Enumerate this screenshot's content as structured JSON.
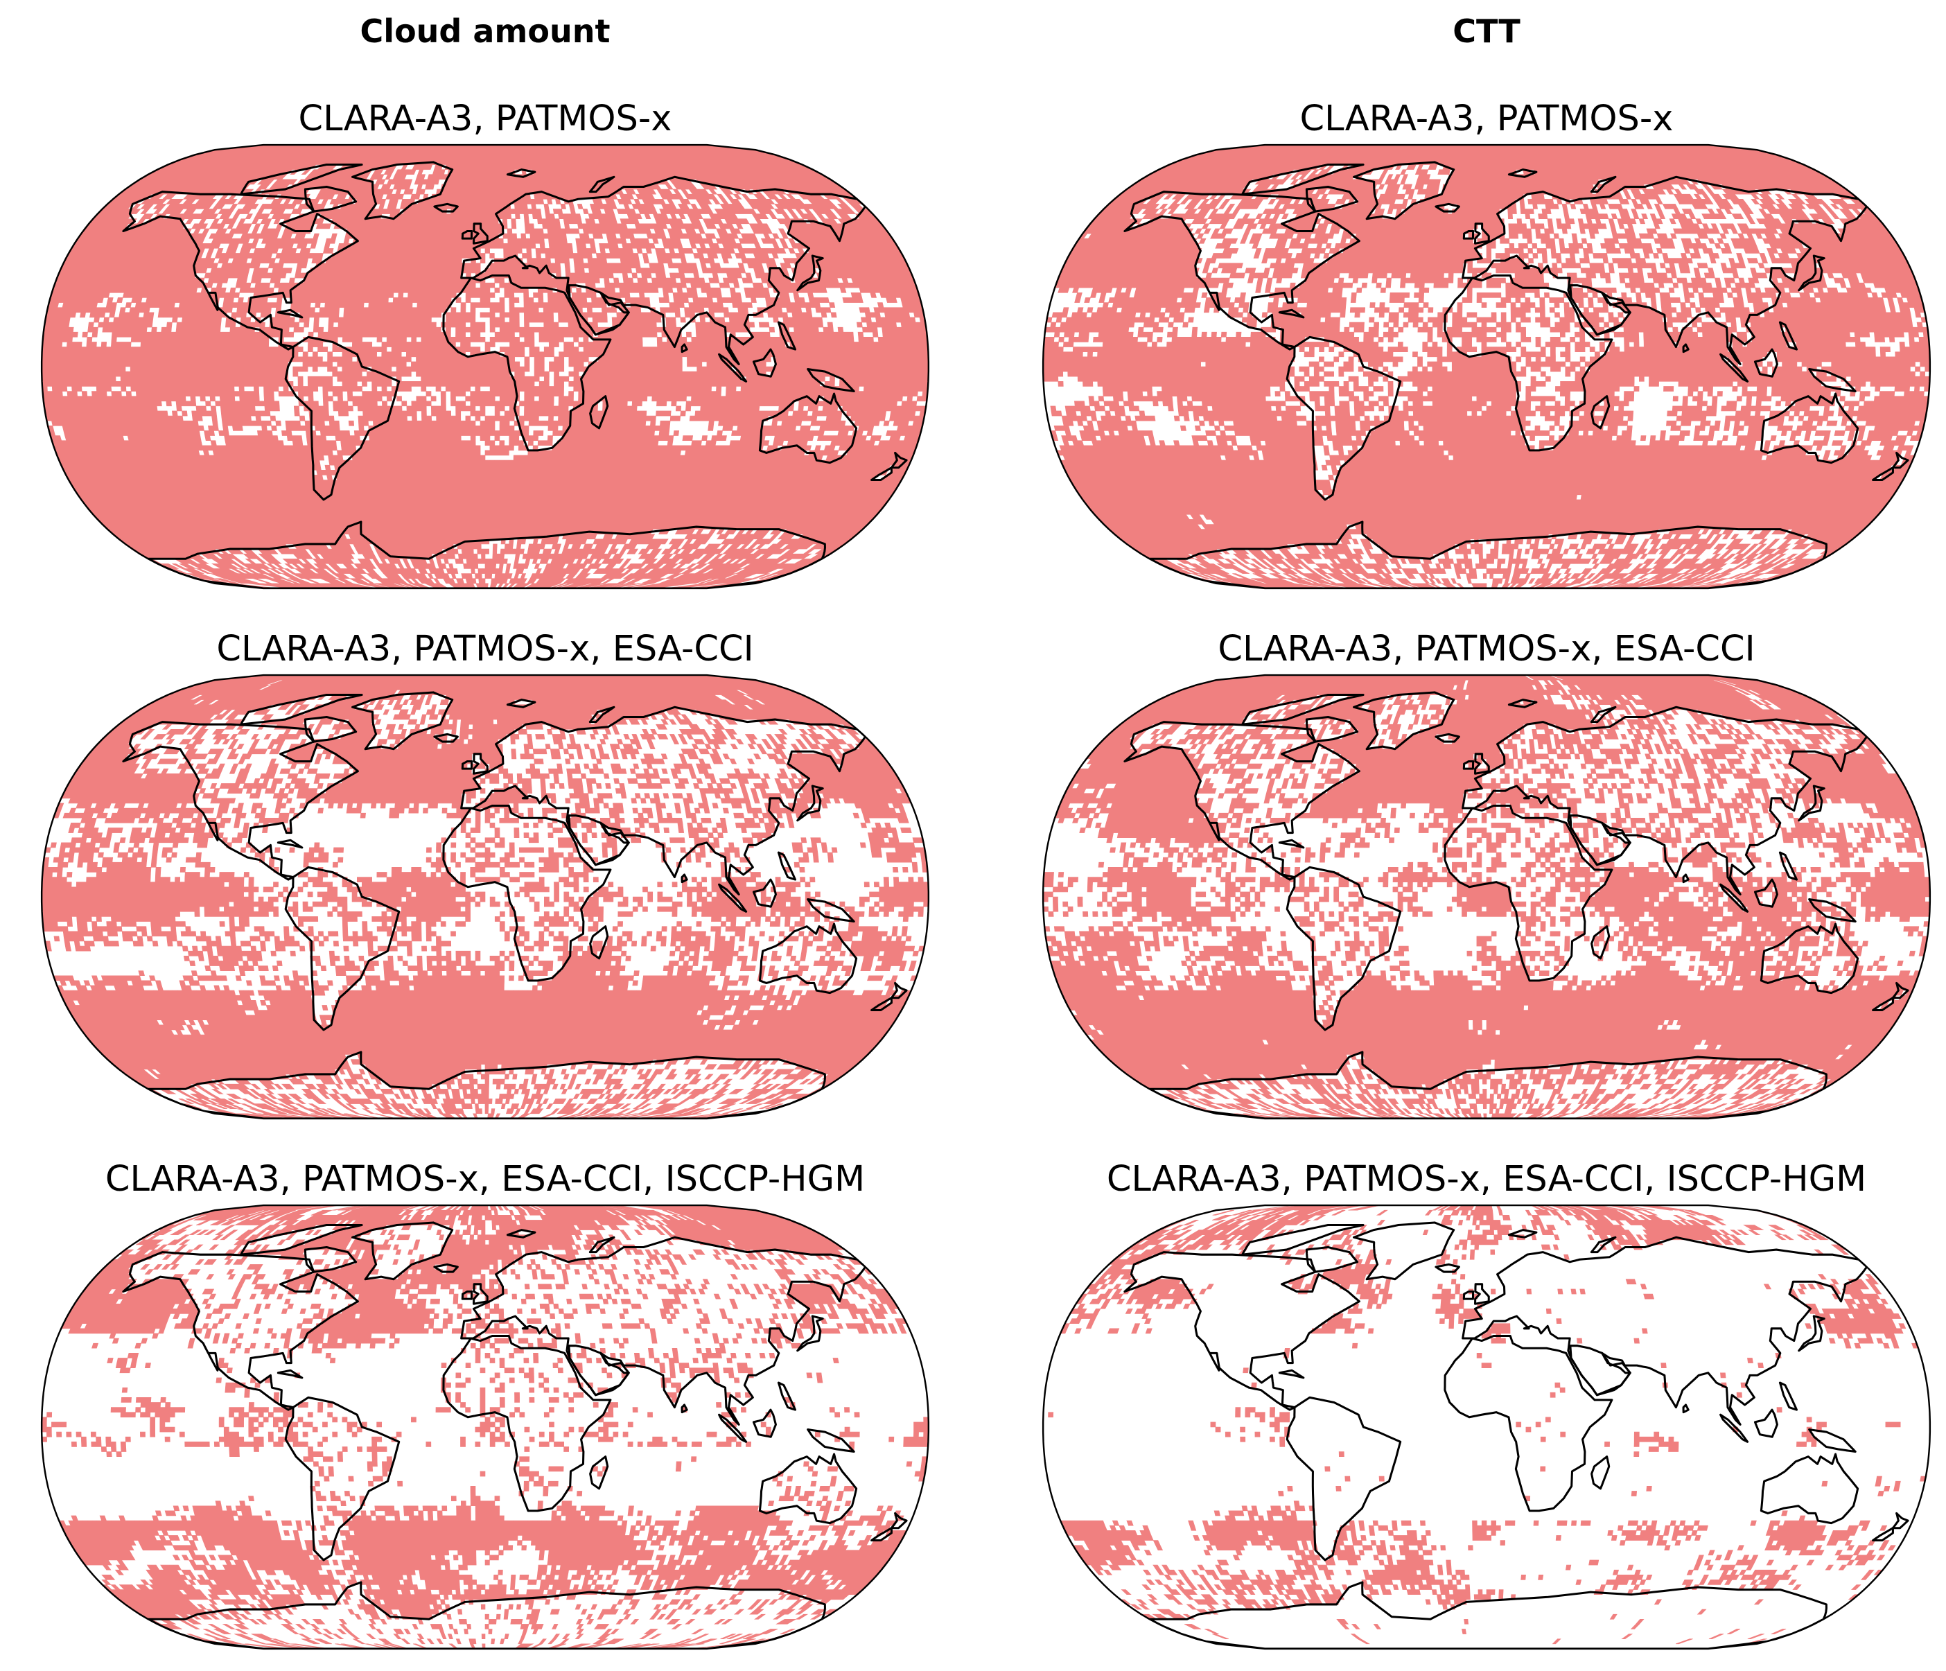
{
  "column_headers": [
    "Cloud amount",
    "CTT"
  ],
  "highlight_color": "#f08080",
  "coast_color": "#000000",
  "panels": [
    {
      "title": "CLARA-A3, PATMOS-x",
      "coverage": 0.76
    },
    {
      "title": "CLARA-A3, PATMOS-x",
      "coverage": 0.66
    },
    {
      "title": "CLARA-A3, PATMOS-x, ESA-CCI",
      "coverage": 0.56
    },
    {
      "title": "CLARA-A3, PATMOS-x, ESA-CCI",
      "coverage": 0.57
    },
    {
      "title": "CLARA-A3, PATMOS-x, ESA-CCI, ISCCP-HGM",
      "coverage": 0.43
    },
    {
      "title": "CLARA-A3, PATMOS-x, ESA-CCI, ISCCP-HGM",
      "coverage": 0.26
    }
  ]
}
